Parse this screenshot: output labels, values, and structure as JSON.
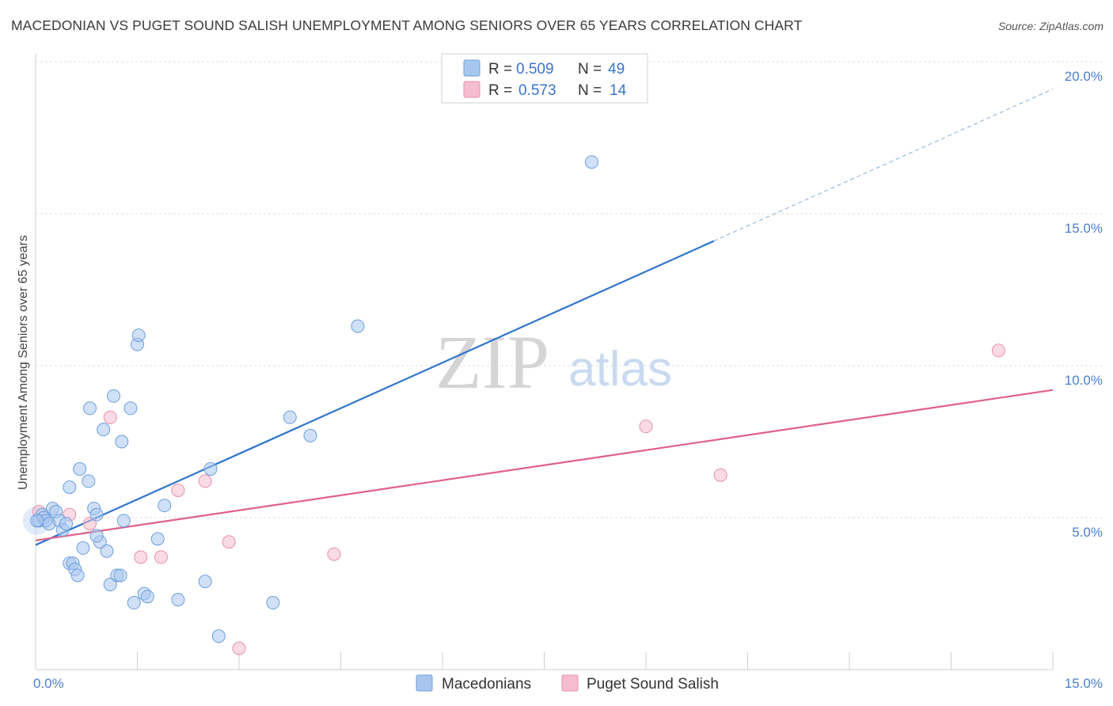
{
  "title": "MACEDONIAN VS PUGET SOUND SALISH UNEMPLOYMENT AMONG SENIORS OVER 65 YEARS CORRELATION CHART",
  "source": "Source: ZipAtlas.com",
  "watermark": {
    "zip": "ZIP",
    "atlas": "atlas"
  },
  "colors": {
    "blue_fill": "#a9c7ee",
    "blue_stroke": "#6d9fdc",
    "blue_line": "#2f75cc",
    "pink_fill": "#f6bdd0",
    "pink_stroke": "#e58fae",
    "pink_line": "#e0608c",
    "tick_text": "#4a7fcf",
    "grid": "#dddddd"
  },
  "legend": {
    "rows": [
      {
        "r_label": "R =",
        "r_value": "0.509",
        "n_label": "N =",
        "n_value": "49"
      },
      {
        "r_label": "R =",
        "r_value": "0.573",
        "n_label": "N =",
        "n_value": "14"
      }
    ]
  },
  "chart_data": {
    "type": "scatter",
    "xlabel": "",
    "ylabel": "Unemployment Among Seniors over 65 years",
    "xlim": [
      0,
      15
    ],
    "ylim": [
      0,
      20
    ],
    "x_tick_labels": [
      "0.0%",
      "15.0%"
    ],
    "y_ticks": [
      5,
      10,
      15,
      20
    ],
    "y_tick_labels": [
      "5.0%",
      "10.0%",
      "15.0%",
      "20.0%"
    ],
    "grid": true,
    "legend_position": "top-center",
    "series": [
      {
        "name": "Macedonians",
        "r": 0.509,
        "n": 49,
        "trend": {
          "x0": 0,
          "y0": 4.1,
          "x1": 10.0,
          "y1": 14.1,
          "dash_to_x": 15.0
        },
        "points": [
          [
            0.05,
            4.9
          ],
          [
            0.1,
            5.1
          ],
          [
            0.12,
            5.0
          ],
          [
            0.15,
            4.9
          ],
          [
            0.2,
            4.8
          ],
          [
            0.25,
            5.3
          ],
          [
            0.3,
            5.2
          ],
          [
            0.35,
            4.9
          ],
          [
            0.4,
            4.6
          ],
          [
            0.45,
            4.8
          ],
          [
            0.5,
            3.5
          ],
          [
            0.5,
            6.0
          ],
          [
            0.55,
            3.5
          ],
          [
            0.58,
            3.3
          ],
          [
            0.62,
            3.1
          ],
          [
            0.65,
            6.6
          ],
          [
            0.7,
            4.0
          ],
          [
            0.78,
            6.2
          ],
          [
            0.8,
            8.6
          ],
          [
            0.86,
            5.3
          ],
          [
            0.9,
            5.1
          ],
          [
            0.95,
            4.2
          ],
          [
            0.9,
            4.4
          ],
          [
            1.0,
            7.9
          ],
          [
            1.05,
            3.9
          ],
          [
            1.1,
            2.8
          ],
          [
            1.15,
            9.0
          ],
          [
            1.2,
            3.1
          ],
          [
            1.25,
            3.1
          ],
          [
            1.27,
            7.5
          ],
          [
            1.3,
            4.9
          ],
          [
            1.4,
            8.6
          ],
          [
            1.45,
            2.2
          ],
          [
            1.5,
            10.7
          ],
          [
            1.52,
            11.0
          ],
          [
            1.6,
            2.5
          ],
          [
            1.65,
            2.4
          ],
          [
            1.8,
            4.3
          ],
          [
            1.9,
            5.4
          ],
          [
            2.1,
            2.3
          ],
          [
            2.5,
            2.9
          ],
          [
            2.58,
            6.6
          ],
          [
            2.7,
            1.1
          ],
          [
            3.5,
            2.2
          ],
          [
            3.75,
            8.3
          ],
          [
            4.05,
            7.7
          ],
          [
            4.75,
            11.3
          ],
          [
            8.2,
            16.7
          ],
          [
            0.02,
            4.9
          ]
        ]
      },
      {
        "name": "Puget Sound Salish",
        "r": 0.573,
        "n": 14,
        "trend": {
          "x0": 0,
          "y0": 4.25,
          "x1": 15.0,
          "y1": 9.2
        },
        "points": [
          [
            0.05,
            5.2
          ],
          [
            0.5,
            5.1
          ],
          [
            0.8,
            4.8
          ],
          [
            1.1,
            8.3
          ],
          [
            1.55,
            3.7
          ],
          [
            1.85,
            3.7
          ],
          [
            2.1,
            5.9
          ],
          [
            2.5,
            6.2
          ],
          [
            2.85,
            4.2
          ],
          [
            3.0,
            0.7
          ],
          [
            4.4,
            3.8
          ],
          [
            9.0,
            8.0
          ],
          [
            10.1,
            6.4
          ],
          [
            14.2,
            10.5
          ]
        ]
      }
    ]
  }
}
